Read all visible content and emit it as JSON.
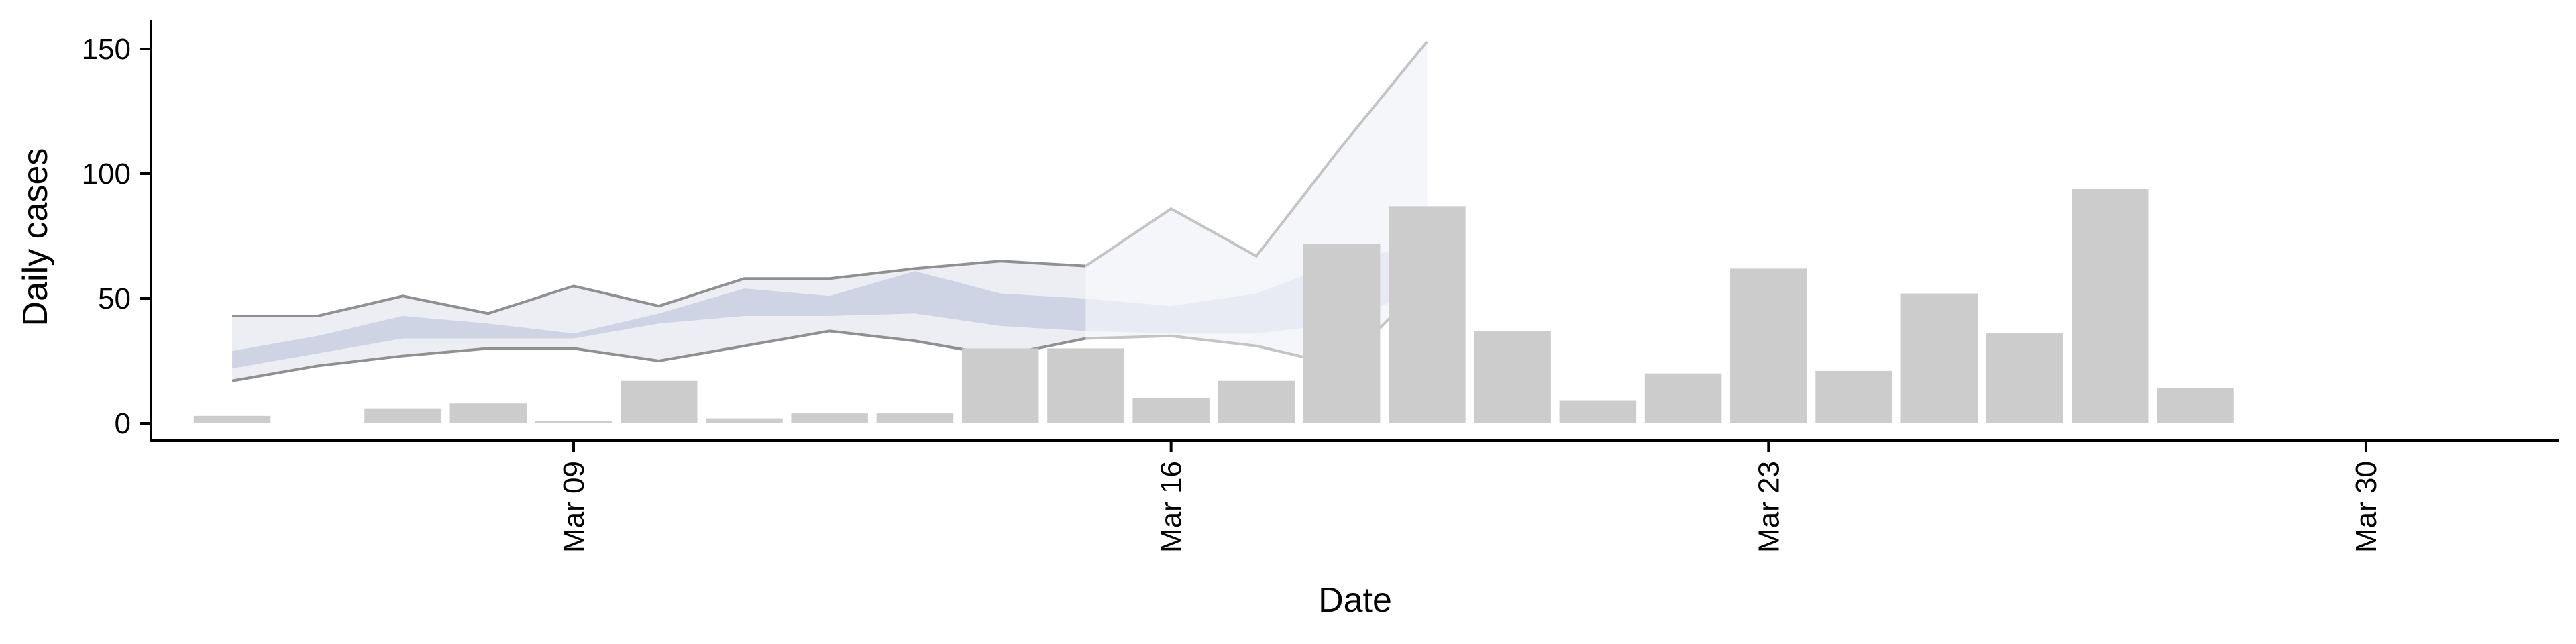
{
  "chart_data": {
    "type": "bar",
    "title": "",
    "xlabel": "Date",
    "ylabel": "Daily cases",
    "ylim": [
      -7,
      162
    ],
    "yticks": [
      0,
      50,
      100,
      150
    ],
    "xlim": [
      "2020-03-02",
      "2020-03-30"
    ],
    "xticks": [
      {
        "date": "2020-03-09",
        "label": "Mar 09"
      },
      {
        "date": "2020-03-16",
        "label": "Mar 16"
      },
      {
        "date": "2020-03-23",
        "label": "Mar 23"
      },
      {
        "date": "2020-03-30",
        "label": "Mar 30"
      }
    ],
    "bar_color": "#cccccc",
    "bars": [
      {
        "date": "2020-03-05",
        "value": 3
      },
      {
        "date": "2020-03-07",
        "value": 6
      },
      {
        "date": "2020-03-08",
        "value": 8
      },
      {
        "date": "2020-03-09",
        "value": 1
      },
      {
        "date": "2020-03-10",
        "value": 17
      },
      {
        "date": "2020-03-11",
        "value": 2
      },
      {
        "date": "2020-03-12",
        "value": 4
      },
      {
        "date": "2020-03-13",
        "value": 4
      },
      {
        "date": "2020-03-14",
        "value": 30
      },
      {
        "date": "2020-03-15",
        "value": 30
      },
      {
        "date": "2020-03-16",
        "value": 10
      },
      {
        "date": "2020-03-17",
        "value": 17
      },
      {
        "date": "2020-03-18",
        "value": 72
      },
      {
        "date": "2020-03-19",
        "value": 87
      },
      {
        "date": "2020-03-20",
        "value": 37
      },
      {
        "date": "2020-03-21",
        "value": 9
      },
      {
        "date": "2020-03-22",
        "value": 20
      },
      {
        "date": "2020-03-23",
        "value": 62
      },
      {
        "date": "2020-03-24",
        "value": 21
      },
      {
        "date": "2020-03-25",
        "value": 52
      },
      {
        "date": "2020-03-26",
        "value": 36
      },
      {
        "date": "2020-03-27",
        "value": 94
      },
      {
        "date": "2020-03-28",
        "value": 14
      }
    ],
    "bands": [
      {
        "color": "#eceef4",
        "opacity": 1,
        "line_color": "#909090",
        "points": [
          {
            "date": "2020-03-05",
            "lower": 17,
            "upper": 43
          },
          {
            "date": "2020-03-06",
            "lower": 23,
            "upper": 43
          },
          {
            "date": "2020-03-07",
            "lower": 27,
            "upper": 51
          },
          {
            "date": "2020-03-08",
            "lower": 30,
            "upper": 44
          },
          {
            "date": "2020-03-09",
            "lower": 30,
            "upper": 55
          },
          {
            "date": "2020-03-10",
            "lower": 25,
            "upper": 47
          },
          {
            "date": "2020-03-11",
            "lower": 31,
            "upper": 58
          },
          {
            "date": "2020-03-12",
            "lower": 37,
            "upper": 58
          },
          {
            "date": "2020-03-13",
            "lower": 33,
            "upper": 62
          },
          {
            "date": "2020-03-14",
            "lower": 27,
            "upper": 65
          },
          {
            "date": "2020-03-15",
            "lower": 34,
            "upper": 63
          }
        ]
      },
      {
        "color": "#eef0f6",
        "opacity": 0.6,
        "line_color": "#c4c4c4",
        "points": [
          {
            "date": "2020-03-15",
            "lower": 34,
            "upper": 63
          },
          {
            "date": "2020-03-16",
            "lower": 35,
            "upper": 86
          },
          {
            "date": "2020-03-17",
            "lower": 31,
            "upper": 67
          },
          {
            "date": "2020-03-18",
            "lower": 23,
            "upper": 111
          },
          {
            "date": "2020-03-19",
            "lower": 57,
            "upper": 153
          }
        ]
      },
      {
        "color": "#c5cbdf",
        "opacity": 0.75,
        "line_color": "none",
        "points": [
          {
            "date": "2020-03-05",
            "lower": 22,
            "upper": 29
          },
          {
            "date": "2020-03-06",
            "lower": 28,
            "upper": 35
          },
          {
            "date": "2020-03-07",
            "lower": 34,
            "upper": 43
          },
          {
            "date": "2020-03-08",
            "lower": 34,
            "upper": 40
          },
          {
            "date": "2020-03-09",
            "lower": 34,
            "upper": 36
          },
          {
            "date": "2020-03-10",
            "lower": 40,
            "upper": 44
          },
          {
            "date": "2020-03-11",
            "lower": 43,
            "upper": 54
          },
          {
            "date": "2020-03-12",
            "lower": 43,
            "upper": 51
          },
          {
            "date": "2020-03-13",
            "lower": 44,
            "upper": 61
          },
          {
            "date": "2020-03-14",
            "lower": 39,
            "upper": 52
          },
          {
            "date": "2020-03-15",
            "lower": 37,
            "upper": 50
          }
        ]
      },
      {
        "color": "#dde1ec",
        "opacity": 0.55,
        "line_color": "none",
        "points": [
          {
            "date": "2020-03-15",
            "lower": 37,
            "upper": 50
          },
          {
            "date": "2020-03-16",
            "lower": 36,
            "upper": 47
          },
          {
            "date": "2020-03-17",
            "lower": 36,
            "upper": 52
          },
          {
            "date": "2020-03-18",
            "lower": 40,
            "upper": 65
          },
          {
            "date": "2020-03-19",
            "lower": 55,
            "upper": 72
          }
        ]
      }
    ]
  }
}
